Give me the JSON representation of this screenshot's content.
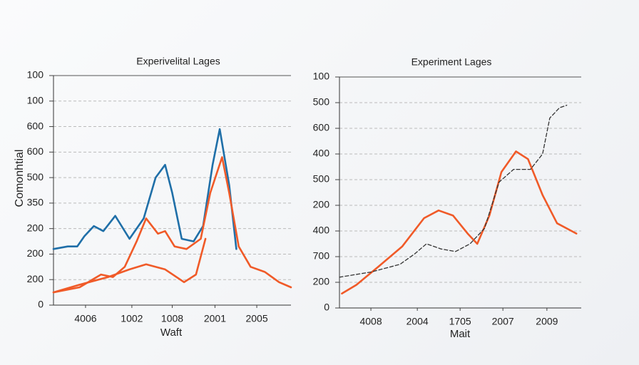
{
  "chart_data": [
    {
      "type": "line",
      "title": "Experivelital Lages",
      "x_label": "Waft",
      "y_label": "Comonhtial",
      "grid": true,
      "xlim": [
        0,
        100
      ],
      "ylim": [
        0,
        9
      ],
      "xticks": [
        {
          "value": 13.5,
          "label": "4006"
        },
        {
          "value": 33,
          "label": "1002"
        },
        {
          "value": 50,
          "label": "1008"
        },
        {
          "value": 68,
          "label": "2001"
        },
        {
          "value": 85.6,
          "label": "2005"
        }
      ],
      "yticks": [
        {
          "value": 0,
          "label": "0"
        },
        {
          "value": 1,
          "label": "200"
        },
        {
          "value": 2,
          "label": "200"
        },
        {
          "value": 3,
          "label": "200"
        },
        {
          "value": 4,
          "label": "350"
        },
        {
          "value": 5,
          "label": "500"
        },
        {
          "value": 6,
          "label": "600"
        },
        {
          "value": 7,
          "label": "600"
        },
        {
          "value": 8,
          "label": "100"
        },
        {
          "value": 9,
          "label": "100"
        }
      ],
      "series": [
        {
          "color": "#1f6fa8",
          "dashed": false,
          "x": [
            0,
            6,
            10,
            13,
            17,
            21,
            26,
            32,
            38,
            43,
            47,
            50,
            54,
            59,
            63,
            67,
            70,
            74,
            77
          ],
          "values": [
            2.2,
            2.3,
            2.3,
            2.7,
            3.1,
            2.9,
            3.5,
            2.6,
            3.4,
            5.0,
            5.5,
            4.4,
            2.6,
            2.5,
            3.1,
            5.5,
            6.9,
            4.7,
            2.2
          ]
        },
        {
          "color": "#f05a28",
          "dashed": false,
          "x": [
            0,
            11,
            20,
            25,
            30,
            35,
            39,
            44,
            47,
            51,
            56,
            62,
            66,
            71,
            74,
            78,
            83,
            89,
            95,
            100
          ],
          "values": [
            0.5,
            0.7,
            1.2,
            1.1,
            1.5,
            2.5,
            3.4,
            2.8,
            2.9,
            2.3,
            2.2,
            2.6,
            4.4,
            5.8,
            4.4,
            2.3,
            1.5,
            1.3,
            0.9,
            0.7
          ]
        },
        {
          "color": "#f05a28",
          "dashed": false,
          "x": [
            0,
            11,
            23,
            32,
            39,
            47,
            55,
            60,
            64
          ],
          "values": [
            0.5,
            0.8,
            1.1,
            1.4,
            1.6,
            1.4,
            0.9,
            1.2,
            2.6
          ]
        }
      ]
    },
    {
      "type": "line",
      "title": "Experiment Lages",
      "x_label": "Mait",
      "grid": true,
      "xlim": [
        0,
        100
      ],
      "ylim": [
        0,
        9
      ],
      "xticks": [
        {
          "value": 13,
          "label": "4008"
        },
        {
          "value": 32.2,
          "label": "2004"
        },
        {
          "value": 49.9,
          "label": "1705"
        },
        {
          "value": 67.6,
          "label": "2007"
        },
        {
          "value": 85.8,
          "label": "2009"
        }
      ],
      "yticks": [
        {
          "value": 0,
          "label": "0"
        },
        {
          "value": 1,
          "label": "200"
        },
        {
          "value": 2,
          "label": "700"
        },
        {
          "value": 3,
          "label": "400"
        },
        {
          "value": 4,
          "label": "200"
        },
        {
          "value": 5,
          "label": "500"
        },
        {
          "value": 6,
          "label": "400"
        },
        {
          "value": 7,
          "label": "600"
        },
        {
          "value": 8,
          "label": "500"
        },
        {
          "value": 9,
          "label": "100"
        }
      ],
      "series": [
        {
          "color": "#f05a28",
          "dashed": false,
          "x": [
            1,
            7,
            16,
            26,
            35,
            41,
            47,
            53,
            57,
            62,
            67,
            73,
            78,
            84,
            90,
            96,
            98
          ],
          "values": [
            0.56,
            0.9,
            1.6,
            2.4,
            3.5,
            3.8,
            3.6,
            2.9,
            2.5,
            3.6,
            5.3,
            6.1,
            5.8,
            4.4,
            3.3,
            3.0,
            2.9
          ]
        },
        {
          "color": "#333333",
          "dashed": true,
          "x": [
            0,
            13,
            25,
            31,
            36,
            42,
            48,
            54,
            60,
            66,
            72,
            79,
            84,
            87,
            91,
            94
          ],
          "values": [
            1.2,
            1.4,
            1.7,
            2.1,
            2.5,
            2.3,
            2.2,
            2.5,
            3.1,
            4.9,
            5.4,
            5.4,
            6.0,
            7.4,
            7.8,
            7.9
          ]
        }
      ]
    }
  ]
}
